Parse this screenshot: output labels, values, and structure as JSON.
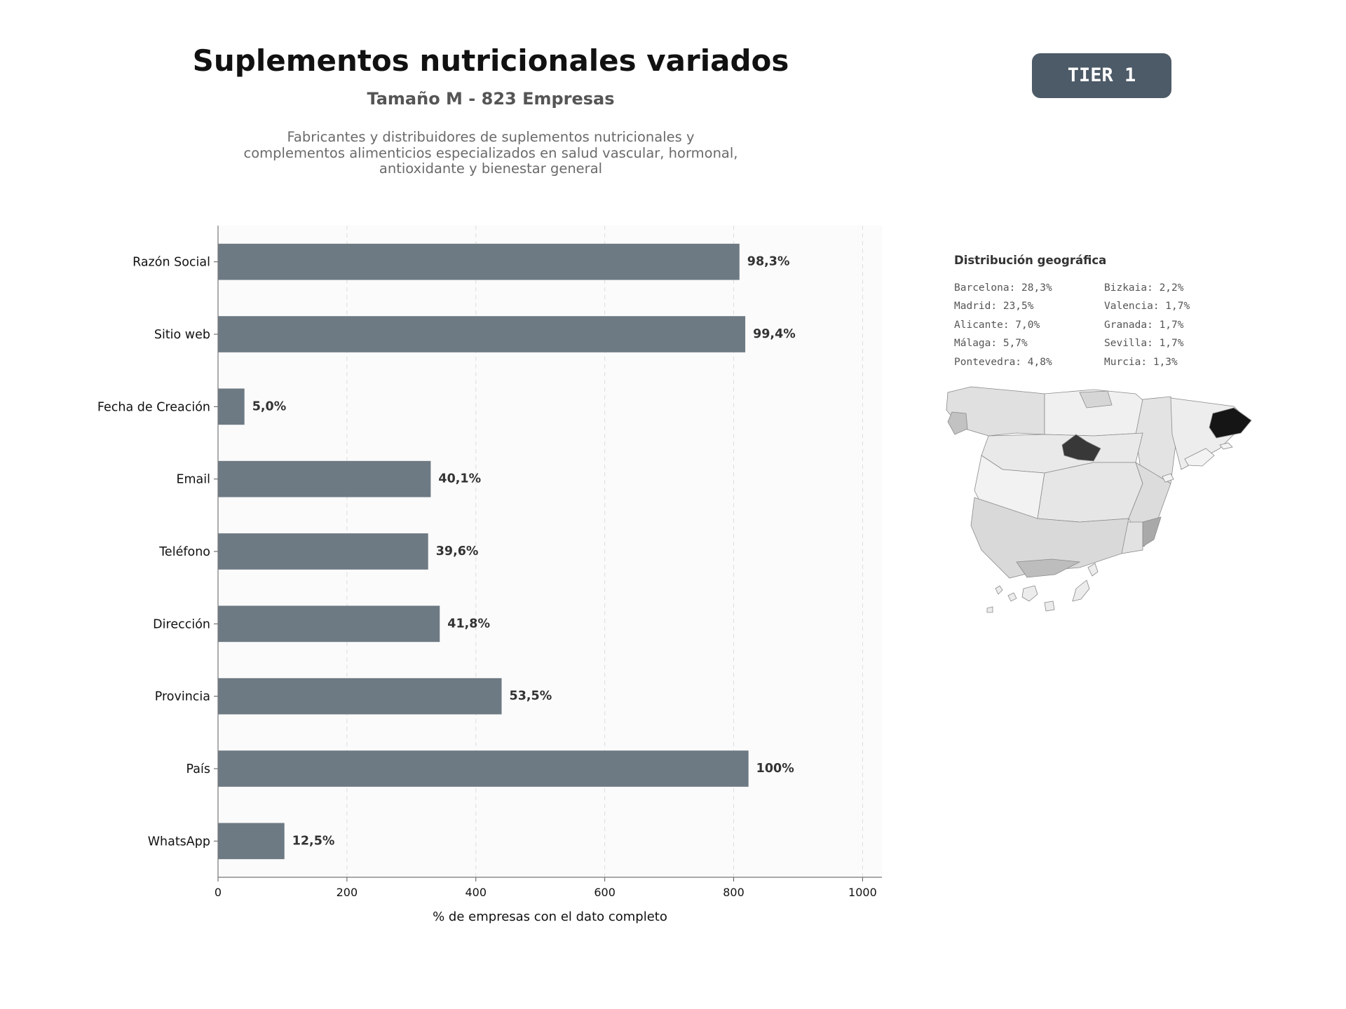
{
  "header": {
    "title": "Suplementos nutricionales variados",
    "subtitle": "Tamaño M - 823 Empresas",
    "description_lines": [
      "Fabricantes y distribuidores de suplementos nutricionales y",
      "complementos alimenticios especializados en salud vascular, hormonal,",
      "antioxidante y bienestar general"
    ]
  },
  "badge": {
    "label": "TIER 1",
    "color": "#4d5a67"
  },
  "chart_data": {
    "type": "bar",
    "orientation": "horizontal",
    "categories": [
      "Razón Social",
      "Sitio web",
      "Fecha de Creación",
      "Email",
      "Teléfono",
      "Dirección",
      "Provincia",
      "País",
      "WhatsApp"
    ],
    "values": [
      809,
      818,
      41,
      330,
      326,
      344,
      440,
      823,
      103
    ],
    "data_labels": [
      "98,3%",
      "99,4%",
      "5,0%",
      "40,1%",
      "39,6%",
      "41,8%",
      "53,5%",
      "100%",
      "12,5%"
    ],
    "x_ticks": [
      0,
      200,
      400,
      600,
      800,
      1000
    ],
    "xlim": [
      0,
      1030
    ],
    "xlabel": "% de empresas con el dato completo",
    "grid": "vertical dashed",
    "bar_color": "#6e7a83"
  },
  "geo": {
    "title": "Distribución geográfica",
    "left_column": [
      "Barcelona: 28,3%",
      "Madrid: 23,5%",
      "Alicante: 7,0%",
      "Málaga: 5,7%",
      "Pontevedra: 4,8%"
    ],
    "right_column": [
      "Bizkaia: 2,2%",
      "Valencia: 1,7%",
      "Granada: 1,7%",
      "Sevilla: 1,7%",
      "Murcia: 1,3%"
    ]
  }
}
